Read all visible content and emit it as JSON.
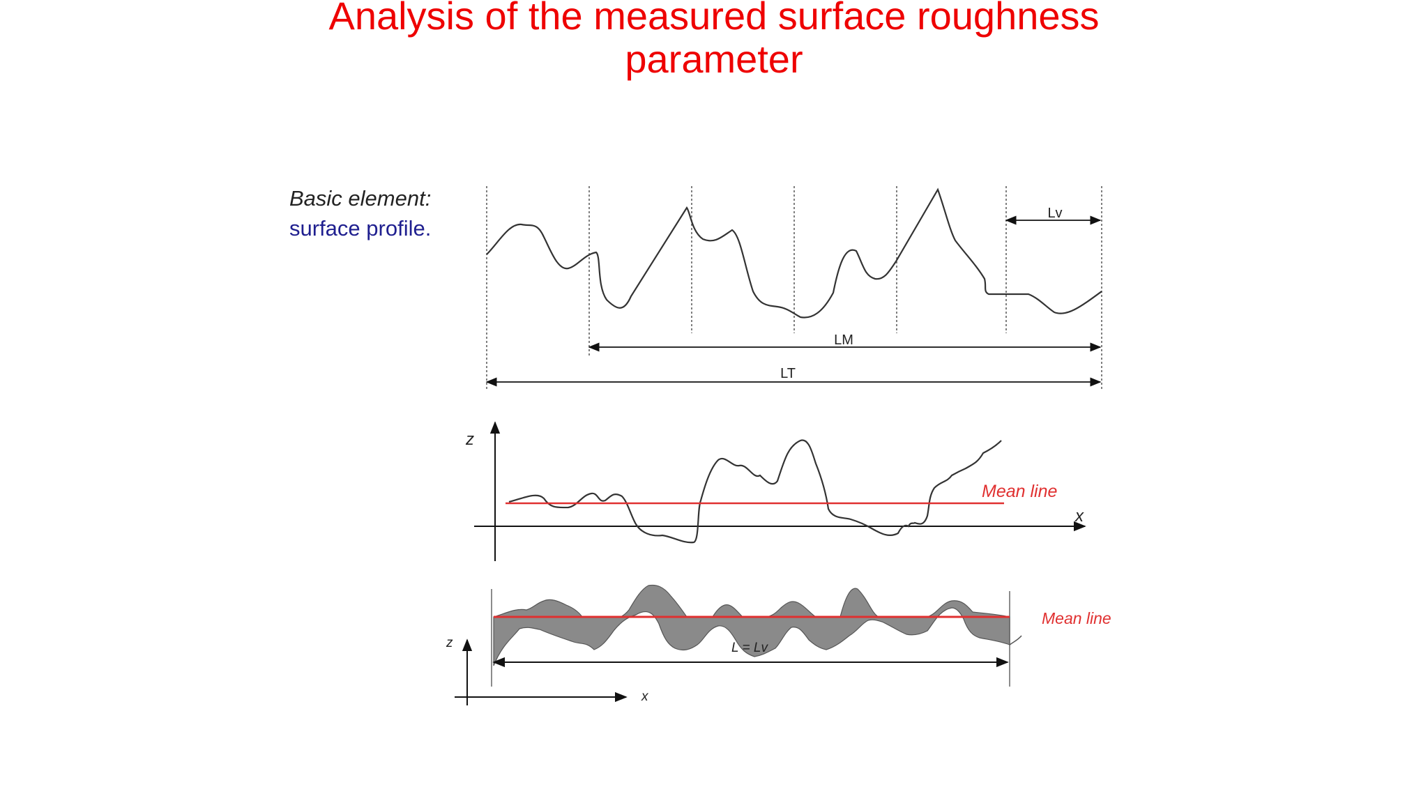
{
  "slide": {
    "title_line1": "Analysis of the measured surface roughness",
    "title_line2": "parameter"
  },
  "profile_panel": {
    "label_line1": "Basic element:",
    "label_line2": "surface profile.",
    "lv_label": "Lv",
    "lm_label": "LM",
    "lt_label": "LT"
  },
  "mean_line_panel": {
    "z_label": "z",
    "x_label": "x",
    "mean_line_label": "Mean line"
  },
  "evaluation_panel": {
    "z_label": "z",
    "x_label": "x",
    "mean_line_label": "Mean line",
    "length_label": "L = Lv"
  },
  "colors": {
    "title": "#ee0000",
    "mean_line": "#e03030",
    "profile": "#333333",
    "shaded_area": "#8a8a8a",
    "label_blue": "#1f1f8f"
  }
}
